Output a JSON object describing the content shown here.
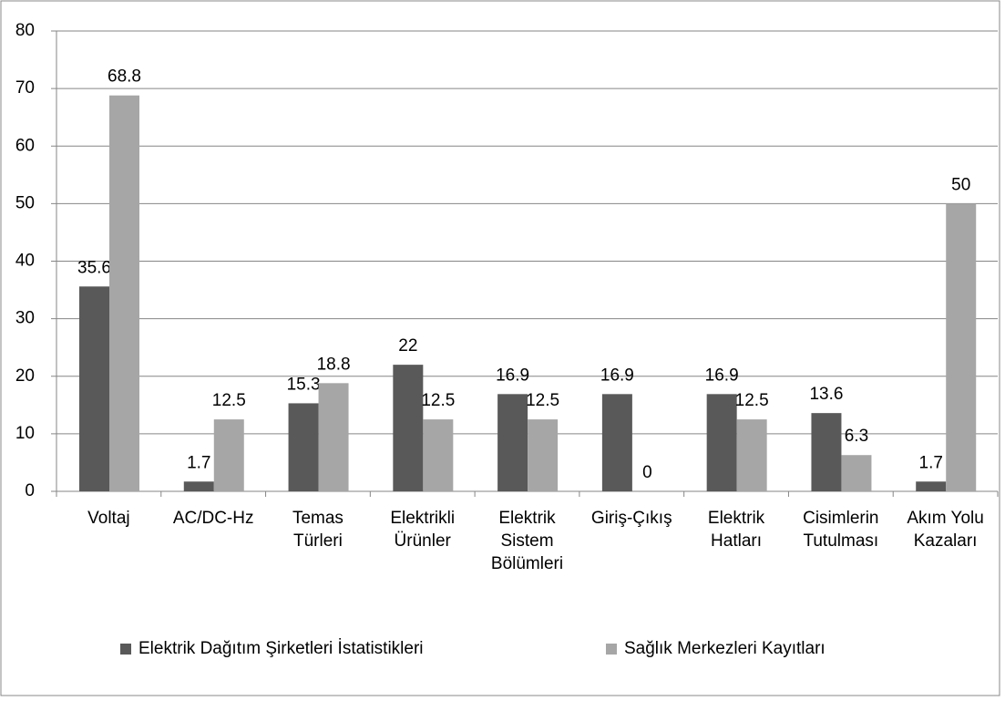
{
  "chart_data": {
    "type": "bar",
    "categories": [
      "Voltaj",
      "AC/DC-Hz",
      "Temas Türleri",
      "Elektrikli Ürünler",
      "Elektrik Sistem Bölümleri",
      "Giriş-Çıkış",
      "Elektrik Hatları",
      "Cisimlerin Tutulması",
      "Akım Yolu Kazaları"
    ],
    "series": [
      {
        "name": "Elektrik Dağıtım Şirketleri İstatistikleri",
        "color": "#595959",
        "values": [
          35.6,
          1.7,
          15.3,
          22,
          16.9,
          16.9,
          16.9,
          13.6,
          1.7
        ]
      },
      {
        "name": "Sağlık Merkezleri Kayıtları",
        "color": "#a6a6a6",
        "values": [
          68.8,
          12.5,
          18.8,
          12.5,
          12.5,
          0,
          12.5,
          6.3,
          50
        ]
      }
    ],
    "ylim": [
      0,
      80
    ],
    "yticks": [
      0,
      10,
      20,
      30,
      40,
      50,
      60,
      70,
      80
    ],
    "grid": true,
    "legend": "bottom"
  }
}
